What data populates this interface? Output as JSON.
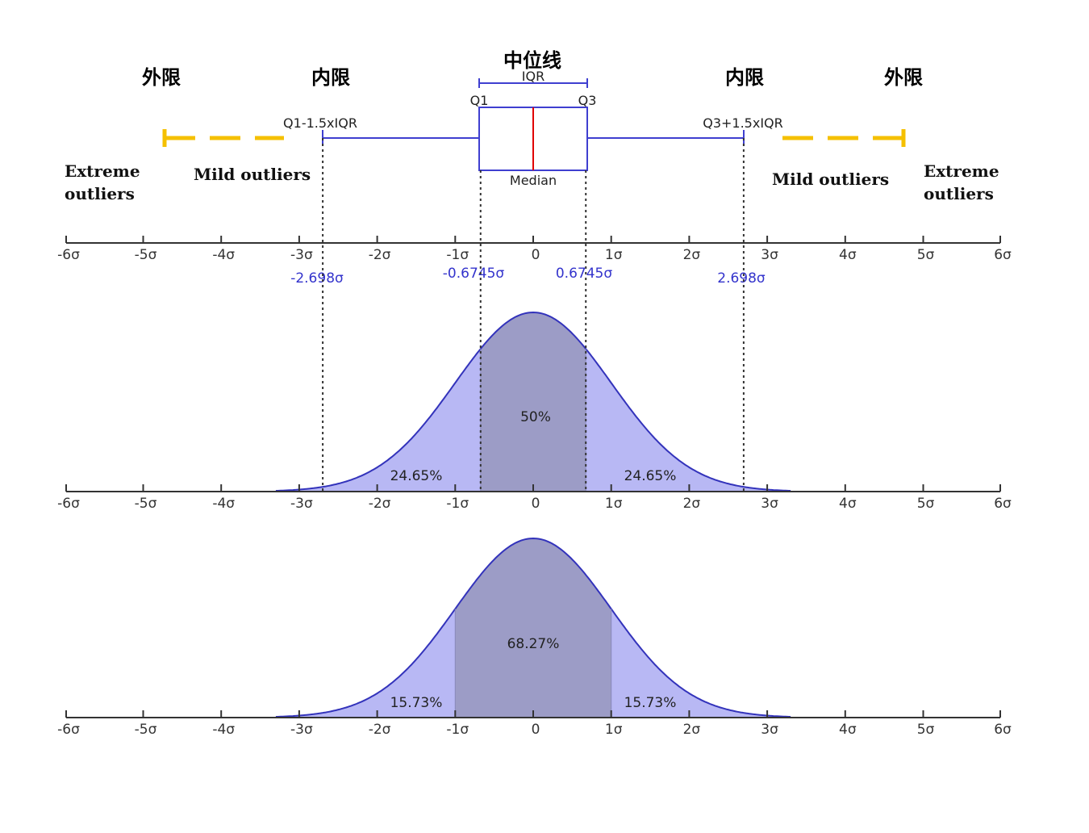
{
  "labels": {
    "outer_fence": "外限",
    "inner_fence": "内限",
    "median_line": "中位线",
    "iqr": "IQR",
    "q1": "Q1",
    "q3": "Q3",
    "median": "Median",
    "lower_whisker": "Q1-1.5xIQR",
    "upper_whisker": "Q3+1.5xIQR",
    "extreme_line1": "Extreme",
    "extreme_line2": "outliers",
    "mild_outliers": "Mild outliers"
  },
  "sigma_marks": {
    "neg_2698": "-2.698σ",
    "neg_06745": "-0.6745σ",
    "pos_06745": "0.6745σ",
    "pos_2698": "2.698σ"
  },
  "ticks": [
    "-6σ",
    "-5σ",
    "-4σ",
    "-3σ",
    "-2σ",
    "-1σ",
    "0",
    "1σ",
    "2σ",
    "3σ",
    "4σ",
    "5σ",
    "6σ"
  ],
  "areas_iqr": {
    "left": "24.65%",
    "center": "50%",
    "right": "24.65%"
  },
  "areas_sigma": {
    "left": "15.73%",
    "center": "68.27%",
    "right": "15.73%"
  },
  "colors": {
    "box_blue": "#3f3fd0",
    "median_red": "#e00000",
    "fence_yellow": "#f5c000",
    "curve_fill": "#b8b8f4",
    "center_fill": "#9c9cc6",
    "curve_stroke": "#3333bb"
  }
}
